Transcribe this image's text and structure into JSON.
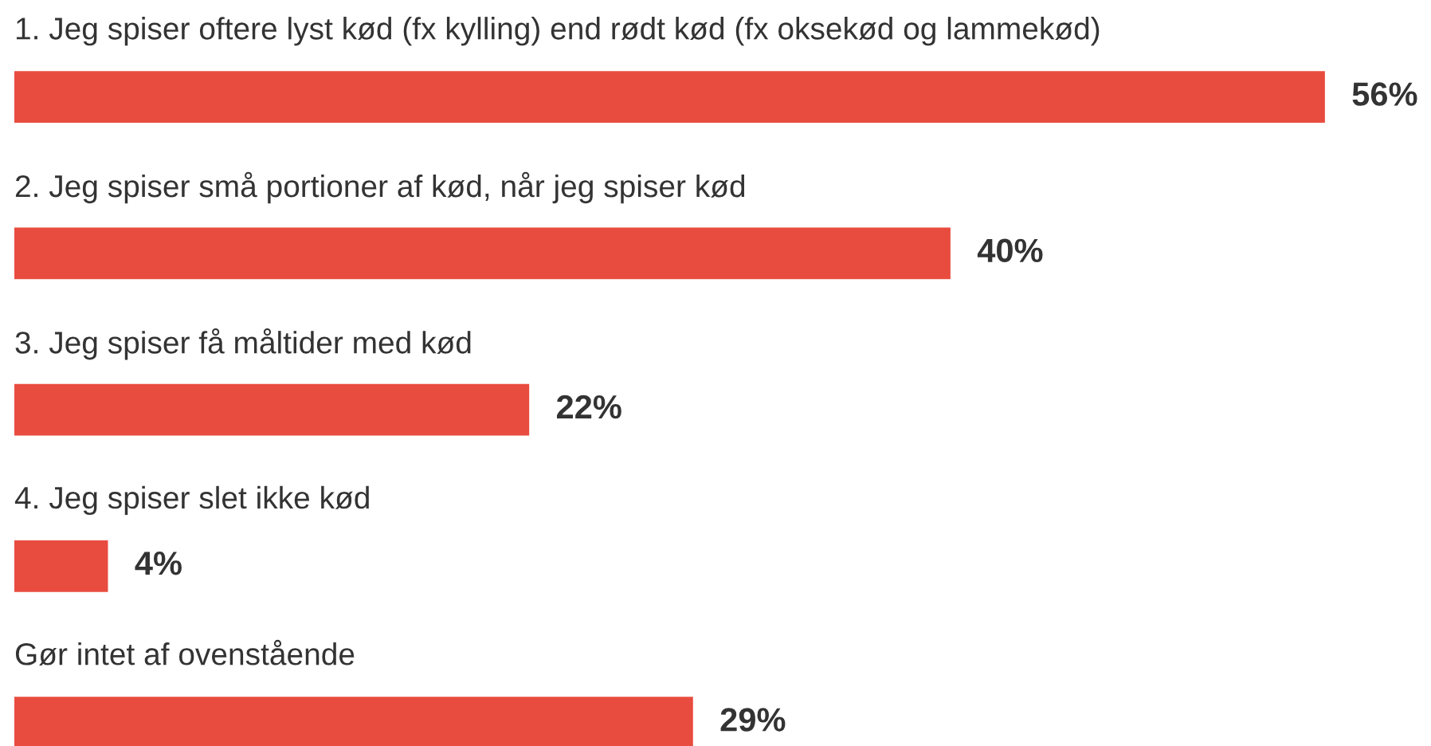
{
  "chart_data": {
    "type": "bar",
    "orientation": "horizontal",
    "categories": [
      "1. Jeg spiser oftere lyst kød (fx kylling) end rødt kød (fx oksekød og lammekød)",
      "2. Jeg spiser små portioner af kød, når jeg spiser kød",
      "3. Jeg spiser få måltider med kød",
      "4. Jeg spiser slet ikke kød",
      "Gør intet af ovenstående"
    ],
    "values": [
      56,
      40,
      22,
      4,
      29
    ],
    "value_labels": [
      "56%",
      "40%",
      "22%",
      "4%",
      "29%"
    ],
    "color": "#e84c3e"
  }
}
